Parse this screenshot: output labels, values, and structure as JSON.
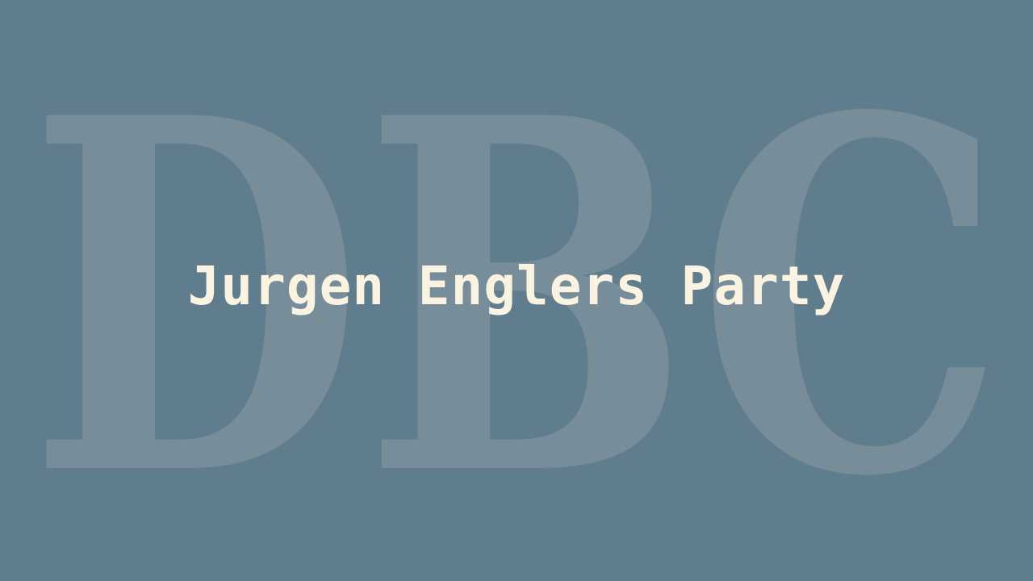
{
  "slide": {
    "watermark_text": "DBC",
    "title": "Jurgen Englers Party"
  },
  "colors": {
    "background": "#5f7d8c",
    "watermark": "#778d9a",
    "title": "#fbf3e2"
  }
}
